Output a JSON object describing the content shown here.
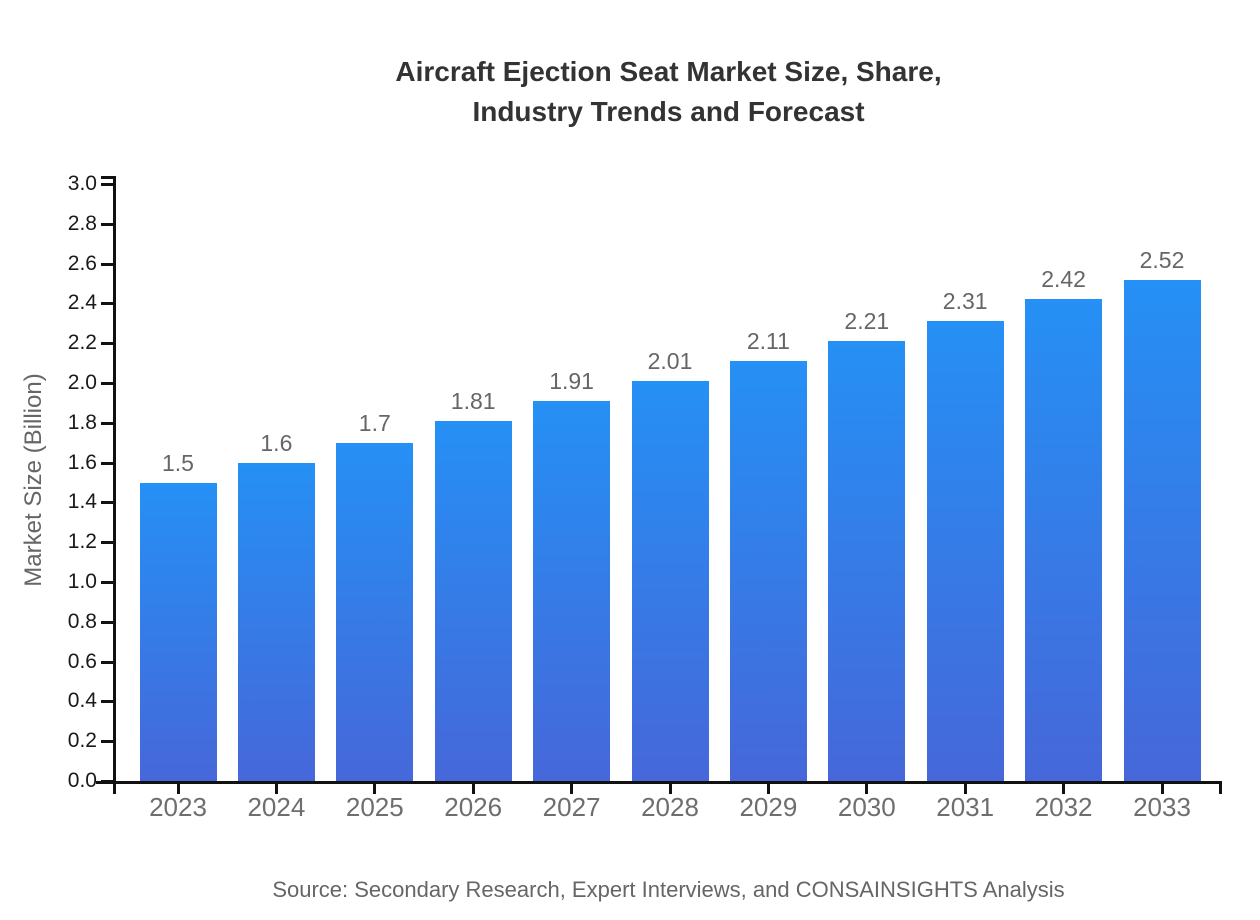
{
  "header": {
    "title_line1": "Aircraft Ejection Seat Market Size, Share,",
    "title_line2": "Industry Trends and Forecast"
  },
  "footer": {
    "source": "Source: Secondary Research, Expert Interviews, and CONSAINSIGHTS Analysis"
  },
  "chart_data": {
    "type": "bar",
    "title": "Aircraft Ejection Seat Market Size, Share, Industry Trends and Forecast",
    "categories": [
      "2023",
      "2024",
      "2025",
      "2026",
      "2027",
      "2028",
      "2029",
      "2030",
      "2031",
      "2032",
      "2033"
    ],
    "values": [
      1.5,
      1.6,
      1.7,
      1.81,
      1.91,
      2.01,
      2.11,
      2.21,
      2.31,
      2.42,
      2.52
    ],
    "value_labels": [
      "1.5",
      "1.6",
      "1.7",
      "1.81",
      "1.91",
      "2.01",
      "2.11",
      "2.21",
      "2.31",
      "2.42",
      "2.52"
    ],
    "xlabel": "",
    "ylabel": "Market Size (Billion)",
    "ylim": [
      0.0,
      3.0
    ],
    "ytick_interval": 0.2,
    "ytick_labels": [
      "0.0",
      "0.2",
      "0.4",
      "0.6",
      "0.8",
      "1.0",
      "1.2",
      "1.4",
      "1.6",
      "1.8",
      "2.0",
      "2.2",
      "2.4",
      "2.6",
      "2.8",
      "3.0"
    ],
    "grid": false,
    "legend_position": "none",
    "colors": {
      "bar_gradient_top": "#2590f5",
      "bar_gradient_bottom": "#4667d9",
      "axis_line": "#111111",
      "ytick_label": "#1a1a1a",
      "xtick_label": "#6e6e6e",
      "value_label": "#666666",
      "title": "#333333",
      "source": "#666666"
    }
  }
}
